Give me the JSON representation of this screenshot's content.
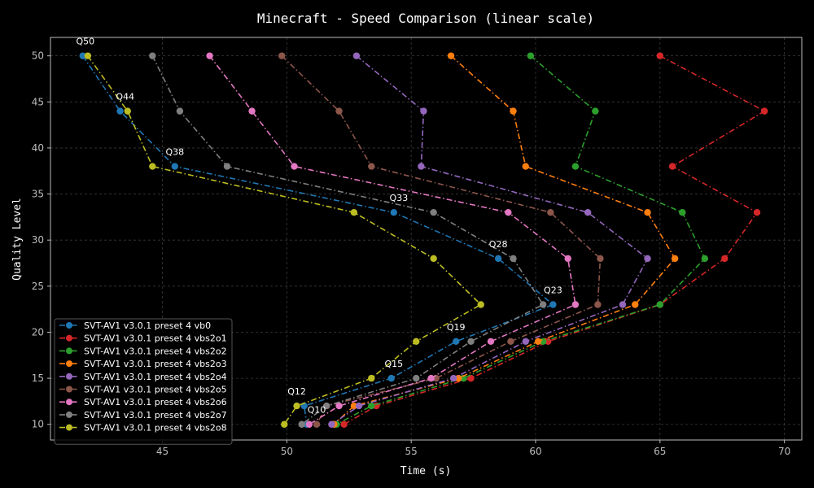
{
  "chart_data": {
    "type": "line",
    "title": "Minecraft - Speed Comparison (linear scale)",
    "xlabel": "Time (s)",
    "ylabel": "Quality Level",
    "xlim": [
      40.5,
      70.7
    ],
    "ylim": [
      8.3,
      52
    ],
    "xticks": [
      45,
      50,
      55,
      60,
      65,
      70
    ],
    "yticks": [
      10,
      15,
      20,
      25,
      30,
      35,
      40,
      45,
      50
    ],
    "grid": true,
    "legend_position": "bottom-left",
    "annotations": [
      {
        "text": "Q50",
        "x": 41.9,
        "y": 50
      },
      {
        "text": "Q44",
        "x": 43.5,
        "y": 44
      },
      {
        "text": "Q38",
        "x": 45.5,
        "y": 38
      },
      {
        "text": "Q33",
        "x": 54.5,
        "y": 33
      },
      {
        "text": "Q28",
        "x": 58.5,
        "y": 28
      },
      {
        "text": "Q23",
        "x": 60.7,
        "y": 23
      },
      {
        "text": "Q19",
        "x": 56.8,
        "y": 19
      },
      {
        "text": "Q15",
        "x": 54.3,
        "y": 15
      },
      {
        "text": "Q12",
        "x": 50.4,
        "y": 12
      },
      {
        "text": "Q10",
        "x": 51.2,
        "y": 10
      }
    ],
    "series": [
      {
        "name": "SVT-AV1 v3.0.1 preset 4 vb0",
        "color": "#1f77b4",
        "dash": "dashdot",
        "x": [
          41.8,
          43.3,
          45.5,
          54.3,
          58.5,
          60.7,
          56.8,
          54.2,
          50.7,
          50.8
        ],
        "y": [
          50,
          44,
          38,
          33,
          28,
          23,
          19,
          15,
          12,
          10
        ]
      },
      {
        "name": "SVT-AV1 v3.0.1 preset 4 vbs2o1",
        "color": "#d62728",
        "dash": "dashdot",
        "x": [
          65.0,
          69.2,
          65.5,
          68.9,
          67.6,
          65.0,
          60.5,
          57.4,
          53.6,
          52.3
        ],
        "y": [
          50,
          44,
          38,
          33,
          28,
          23,
          19,
          15,
          12,
          10
        ]
      },
      {
        "name": "SVT-AV1 v3.0.1 preset 4 vbs2o2",
        "color": "#2ca02c",
        "dash": "dashdot",
        "x": [
          59.8,
          62.4,
          61.6,
          65.9,
          66.8,
          65.0,
          60.3,
          57.1,
          53.4,
          52.0
        ],
        "y": [
          50,
          44,
          38,
          33,
          28,
          23,
          19,
          15,
          12,
          10
        ]
      },
      {
        "name": "SVT-AV1 v3.0.1 preset 4 vbs2o3",
        "color": "#ff7f0e",
        "dash": "dashdot",
        "x": [
          56.6,
          59.1,
          59.6,
          64.5,
          65.6,
          64.0,
          60.1,
          56.9,
          52.7,
          51.9
        ],
        "y": [
          50,
          44,
          38,
          33,
          28,
          23,
          19,
          15,
          12,
          10
        ]
      },
      {
        "name": "SVT-AV1 v3.0.1 preset 4 vbs2o4",
        "color": "#9467bd",
        "dash": "dashdot",
        "x": [
          52.8,
          55.5,
          55.4,
          62.1,
          64.5,
          63.5,
          59.6,
          56.7,
          52.9,
          51.8
        ],
        "y": [
          50,
          44,
          38,
          33,
          28,
          23,
          19,
          15,
          12,
          10
        ]
      },
      {
        "name": "SVT-AV1 v3.0.1 preset 4 vbs2o5",
        "color": "#8c564b",
        "dash": "dashdot",
        "x": [
          49.8,
          52.1,
          53.4,
          60.6,
          62.6,
          62.5,
          59.0,
          56.0,
          51.6,
          51.2
        ],
        "y": [
          50,
          44,
          38,
          33,
          28,
          23,
          19,
          15,
          12,
          10
        ]
      },
      {
        "name": "SVT-AV1 v3.0.1 preset 4 vbs2o6",
        "color": "#e377c2",
        "dash": "dashdot",
        "x": [
          46.9,
          48.6,
          50.3,
          58.9,
          61.3,
          61.6,
          58.2,
          55.8,
          52.1,
          50.9
        ],
        "y": [
          50,
          44,
          38,
          33,
          28,
          23,
          19,
          15,
          12,
          10
        ]
      },
      {
        "name": "SVT-AV1 v3.0.1 preset 4 vbs2o7",
        "color": "#7f7f7f",
        "dash": "dashdot",
        "x": [
          44.6,
          45.7,
          47.6,
          55.9,
          59.1,
          60.3,
          57.4,
          55.2,
          51.6,
          50.6
        ],
        "y": [
          50,
          44,
          38,
          33,
          28,
          23,
          19,
          15,
          12,
          10
        ]
      },
      {
        "name": "SVT-AV1 v3.0.1 preset 4 vbs2o8",
        "color": "#bcbd22",
        "dash": "dashdot",
        "x": [
          42.0,
          43.6,
          44.6,
          52.7,
          55.9,
          57.8,
          55.2,
          53.4,
          50.4,
          49.9
        ],
        "y": [
          50,
          44,
          38,
          33,
          28,
          23,
          19,
          15,
          12,
          10
        ]
      }
    ]
  }
}
